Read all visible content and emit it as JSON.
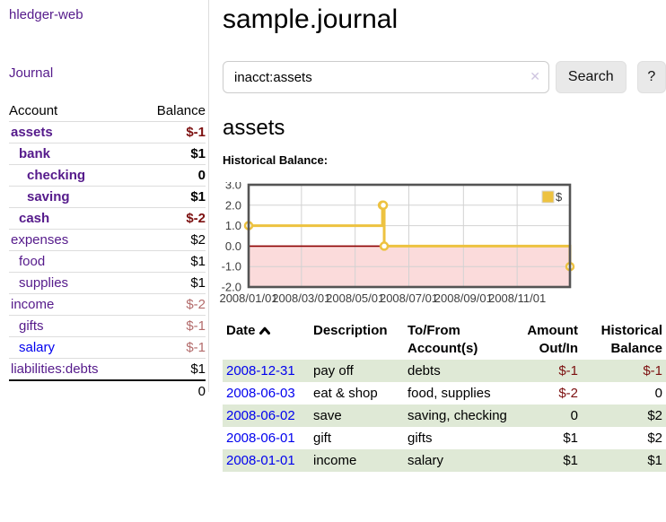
{
  "app": {
    "brand": "hledger-web",
    "nav_journal": "Journal"
  },
  "sidebar": {
    "header": {
      "account": "Account",
      "balance": "Balance"
    },
    "accounts": [
      {
        "name": "assets",
        "depth": 1,
        "balance": "$-1",
        "bold": true,
        "neg": "strong",
        "link": "purple"
      },
      {
        "name": "bank",
        "depth": 2,
        "balance": "$1",
        "bold": true,
        "neg": "",
        "link": "purple"
      },
      {
        "name": "checking",
        "depth": 3,
        "balance": "0",
        "bold": true,
        "neg": "",
        "link": "purple"
      },
      {
        "name": "saving",
        "depth": 3,
        "balance": "$1",
        "bold": true,
        "neg": "",
        "link": "purple"
      },
      {
        "name": "cash",
        "depth": 2,
        "balance": "$-2",
        "bold": true,
        "neg": "strong",
        "link": "purple"
      },
      {
        "name": "expenses",
        "depth": 1,
        "balance": "$2",
        "bold": false,
        "neg": "",
        "link": "purple"
      },
      {
        "name": "food",
        "depth": 2,
        "balance": "$1",
        "bold": false,
        "neg": "",
        "link": "purple"
      },
      {
        "name": "supplies",
        "depth": 2,
        "balance": "$1",
        "bold": false,
        "neg": "",
        "link": "purple"
      },
      {
        "name": "income",
        "depth": 1,
        "balance": "$-2",
        "bold": false,
        "neg": "dim",
        "link": "purple"
      },
      {
        "name": "gifts",
        "depth": 2,
        "balance": "$-1",
        "bold": false,
        "neg": "dim",
        "link": "purple"
      },
      {
        "name": "salary",
        "depth": 2,
        "balance": "$-1",
        "bold": false,
        "neg": "dim",
        "link": "blue"
      },
      {
        "name": "liabilities:debts",
        "depth": 1,
        "balance": "$1",
        "bold": false,
        "neg": "",
        "link": "purple"
      }
    ],
    "total": "0"
  },
  "header": {
    "title": "sample.journal"
  },
  "search": {
    "value": "inacct:assets",
    "clear_icon": "✕",
    "button_label": "Search",
    "help_label": "?"
  },
  "account_page": {
    "title": "assets",
    "chart_label": "Historical Balance:"
  },
  "chart_data": {
    "type": "line",
    "step": true,
    "title": "Historical Balance:",
    "series": [
      {
        "name": "$",
        "color": "#edc240",
        "points": [
          [
            "2008-01-01",
            1
          ],
          [
            "2008-06-01",
            2
          ],
          [
            "2008-06-02",
            2
          ],
          [
            "2008-06-03",
            0
          ],
          [
            "2008-12-31",
            -1
          ]
        ]
      }
    ],
    "xlim": [
      "2008-01-01",
      "2008-12-31"
    ],
    "ylim": [
      -2,
      3
    ],
    "yticks": [
      3,
      2,
      1,
      0,
      -1,
      -2
    ],
    "xticks": [
      {
        "pos": "2008-01-01",
        "label": "2008/01/01"
      },
      {
        "pos": "2008-03-01",
        "label": "2008/03/01"
      },
      {
        "pos": "2008-05-01",
        "label": "2008/05/01"
      },
      {
        "pos": "2008-07-01",
        "label": "2008/07/01"
      },
      {
        "pos": "2008-09-01",
        "label": "2008/09/01"
      },
      {
        "pos": "2008-11-01",
        "label": "2008/11/01"
      }
    ],
    "legend": {
      "label": "$",
      "position": "top-right"
    },
    "colors": {
      "negative_fill": "#fbdbdb",
      "zero_line": "#8e0000",
      "grid": "#d2d2d2",
      "border": "#545454"
    }
  },
  "register": {
    "columns": {
      "date": "Date",
      "description": "Description",
      "accounts": "To/From Account(s)",
      "amount": "Amount Out/In",
      "balance": "Historical Balance"
    },
    "rows": [
      {
        "date": "2008-12-31",
        "description": "pay off",
        "accounts": "debts",
        "amount": "$-1",
        "balance": "$-1",
        "amount_neg": true,
        "balance_neg": true,
        "shade": true
      },
      {
        "date": "2008-06-03",
        "description": "eat & shop",
        "accounts": "food, supplies",
        "amount": "$-2",
        "balance": "0",
        "amount_neg": true,
        "balance_neg": false,
        "shade": false
      },
      {
        "date": "2008-06-02",
        "description": "save",
        "accounts": "saving, checking",
        "amount": "0",
        "balance": "$2",
        "amount_neg": false,
        "balance_neg": false,
        "shade": true
      },
      {
        "date": "2008-06-01",
        "description": "gift",
        "accounts": "gifts",
        "amount": "$1",
        "balance": "$2",
        "amount_neg": false,
        "balance_neg": false,
        "shade": false
      },
      {
        "date": "2008-01-01",
        "description": "income",
        "accounts": "salary",
        "amount": "$1",
        "balance": "$1",
        "amount_neg": false,
        "balance_neg": false,
        "shade": true
      }
    ]
  },
  "colors": {
    "link_purple": "#551a8b",
    "link_blue": "#0000ee",
    "negative": "#7c1010",
    "negative_dim": "#b36b6b",
    "row_green": "#dfe9d6",
    "series_yellow": "#edc240"
  }
}
